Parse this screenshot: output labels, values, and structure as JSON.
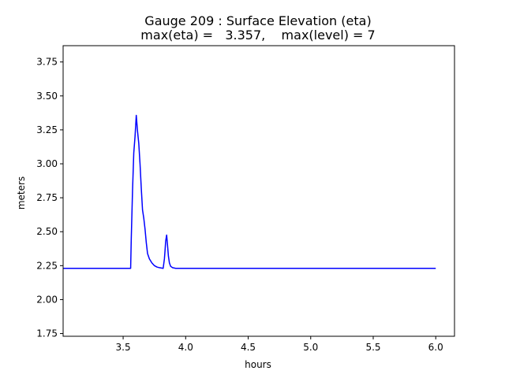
{
  "chart_data": {
    "type": "line",
    "title_line1": "Gauge 209 : Surface Elevation (eta)",
    "title_line2": "max(eta) =   3.357,    max(level) = 7",
    "xlabel": "hours",
    "ylabel": "meters",
    "xlim": [
      3.02,
      6.15
    ],
    "ylim": [
      1.73,
      3.87
    ],
    "xticks": [
      3.5,
      4.0,
      4.5,
      5.0,
      5.5,
      6.0
    ],
    "xtick_labels": [
      "3.5",
      "4.0",
      "4.5",
      "5.0",
      "5.5",
      "6.0"
    ],
    "yticks": [
      1.75,
      2.0,
      2.25,
      2.5,
      2.75,
      3.0,
      3.25,
      3.5,
      3.75
    ],
    "ytick_labels": [
      "1.75",
      "2.00",
      "2.25",
      "2.50",
      "2.75",
      "3.00",
      "3.25",
      "3.50",
      "3.75"
    ],
    "grid": false,
    "series": [
      {
        "color": "#0000ff",
        "x": [
          3.02,
          3.56,
          3.565,
          3.575,
          3.585,
          3.595,
          3.605,
          3.615,
          3.625,
          3.635,
          3.645,
          3.655,
          3.665,
          3.675,
          3.685,
          3.695,
          3.71,
          3.73,
          3.75,
          3.77,
          3.79,
          3.82,
          3.83,
          3.835,
          3.84,
          3.848,
          3.855,
          3.862,
          3.87,
          3.88,
          3.895,
          3.92,
          4.0,
          4.5,
          5.0,
          5.5,
          6.0
        ],
        "y": [
          2.23,
          2.23,
          2.45,
          2.8,
          3.08,
          3.2,
          3.357,
          3.24,
          3.15,
          3.0,
          2.82,
          2.66,
          2.6,
          2.52,
          2.42,
          2.34,
          2.3,
          2.27,
          2.25,
          2.24,
          2.235,
          2.23,
          2.3,
          2.36,
          2.43,
          2.475,
          2.4,
          2.32,
          2.27,
          2.245,
          2.235,
          2.23,
          2.23,
          2.23,
          2.23,
          2.23,
          2.23
        ]
      }
    ]
  }
}
